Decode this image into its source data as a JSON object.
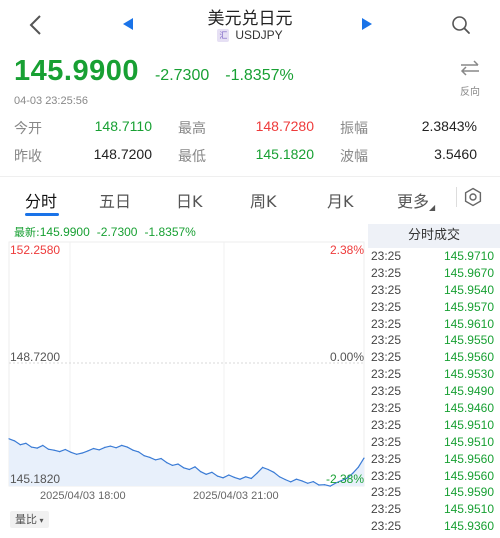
{
  "header": {
    "title": "美元兑日元",
    "badge": "汇",
    "symbol": "USDJPY"
  },
  "quote": {
    "price": "145.9900",
    "change": "-2.7300",
    "change_pct": "-1.8357%",
    "timestamp": "04-03 23:25:56",
    "reverse_label": "反向"
  },
  "stats": {
    "open_label": "今开",
    "open": "148.7110",
    "high_label": "最高",
    "high": "148.7280",
    "amplitude_label": "振幅",
    "amplitude": "2.3843%",
    "prev_close_label": "昨收",
    "prev_close": "148.7200",
    "low_label": "最低",
    "low": "145.1820",
    "wave_label": "波幅",
    "wave": "3.5460"
  },
  "tabs": [
    {
      "label": "分时",
      "active": true
    },
    {
      "label": "五日"
    },
    {
      "label": "日K"
    },
    {
      "label": "周K"
    },
    {
      "label": "月K"
    },
    {
      "label": "更多"
    }
  ],
  "latest": {
    "prefix": "最新:",
    "price": "145.9900",
    "change": "-2.7300",
    "change_pct": "-1.8357%"
  },
  "chart_data": {
    "type": "area",
    "y_labels": {
      "top": "152.2580",
      "mid": "148.7200",
      "bottom": "145.1820"
    },
    "pct_labels": {
      "top": "2.38%",
      "mid": "0.00%",
      "bottom": "-2.38%"
    },
    "x_tick_labels": [
      "2025/04/03 18:00",
      "2025/04/03 21:00"
    ],
    "ylim": [
      145.182,
      152.258
    ],
    "reference": 148.72,
    "line_color": "#3a7bd5",
    "fill_color": "#e8f0fb",
    "values": [
      146.55,
      146.49,
      146.38,
      146.42,
      146.31,
      146.28,
      146.36,
      146.25,
      146.22,
      146.18,
      146.24,
      146.16,
      146.1,
      146.14,
      146.2,
      146.27,
      146.23,
      146.3,
      146.34,
      146.29,
      146.36,
      146.31,
      146.22,
      146.17,
      146.06,
      146.01,
      145.94,
      145.98,
      145.86,
      145.78,
      145.82,
      145.71,
      145.66,
      145.74,
      145.6,
      145.52,
      145.58,
      145.47,
      145.42,
      145.5,
      145.43,
      145.38,
      145.45,
      145.4,
      145.55,
      145.72,
      145.66,
      145.58,
      145.45,
      145.37,
      145.3,
      145.38,
      145.33,
      145.26,
      145.31,
      145.21,
      145.22,
      145.18,
      145.27,
      145.34,
      145.41,
      145.55,
      145.73,
      145.99
    ]
  },
  "volume_button": "量比",
  "trades": {
    "header": "分时成交",
    "rows": [
      {
        "time": "23:25",
        "price": "145.9710"
      },
      {
        "time": "23:25",
        "price": "145.9670"
      },
      {
        "time": "23:25",
        "price": "145.9540"
      },
      {
        "time": "23:25",
        "price": "145.9570"
      },
      {
        "time": "23:25",
        "price": "145.9610"
      },
      {
        "time": "23:25",
        "price": "145.9550"
      },
      {
        "time": "23:25",
        "price": "145.9560"
      },
      {
        "time": "23:25",
        "price": "145.9530"
      },
      {
        "time": "23:25",
        "price": "145.9490"
      },
      {
        "time": "23:25",
        "price": "145.9460"
      },
      {
        "time": "23:25",
        "price": "145.9510"
      },
      {
        "time": "23:25",
        "price": "145.9510"
      },
      {
        "time": "23:25",
        "price": "145.9560"
      },
      {
        "time": "23:25",
        "price": "145.9560"
      },
      {
        "time": "23:25",
        "price": "145.9590"
      },
      {
        "time": "23:25",
        "price": "145.9510"
      },
      {
        "time": "23:25",
        "price": "145.9360"
      }
    ]
  },
  "colors": {
    "up": "#ee3b3b",
    "down": "#18a033",
    "accent": "#1a73e8"
  },
  "icons": {
    "back": "chevron-left-icon",
    "prev": "triangle-left-icon",
    "next": "triangle-right-icon",
    "search": "search-icon",
    "reverse": "swap-arrows-icon",
    "settings": "gear-icon"
  }
}
